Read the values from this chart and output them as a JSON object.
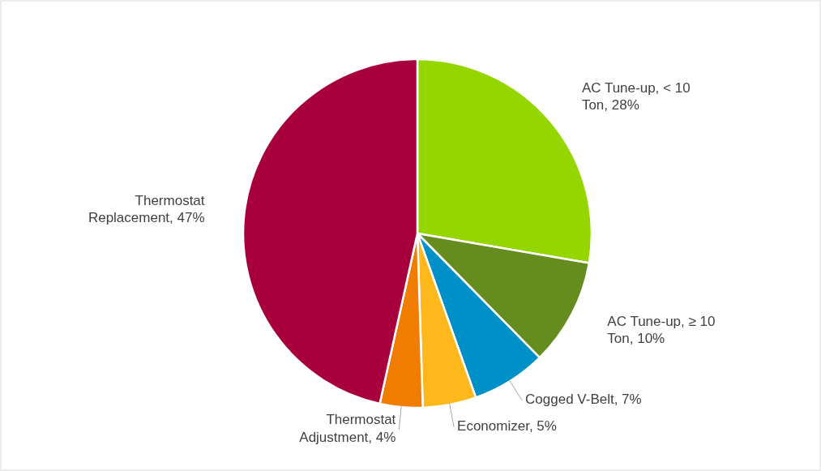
{
  "chart_data": {
    "type": "pie",
    "categories": [
      "AC Tune-up, < 10 Ton, 28%",
      "AC Tune-up, ≥ 10 Ton, 10%",
      "Cogged V-Belt, 7%",
      "Economizer, 5%",
      "Thermostat Adjustment, 4%",
      "Thermostat Replacement, 47%"
    ],
    "values": [
      28,
      10,
      7,
      5,
      4,
      47
    ],
    "colors": [
      "#96d600",
      "#648c1e",
      "#0090c8",
      "#ffb81c",
      "#f07c00",
      "#a8003c"
    ],
    "legend": false
  }
}
